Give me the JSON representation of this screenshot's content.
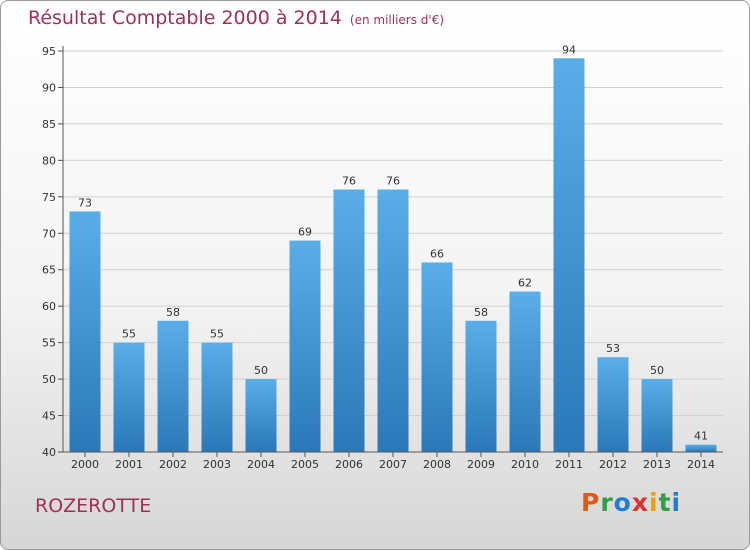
{
  "title": "Résultat Comptable 2000 à 2014",
  "subtitle": "(en milliers d'€)",
  "place": "ROZEROTTE",
  "logo": {
    "letters": [
      "P",
      "r",
      "o",
      "x",
      "i",
      "t",
      "i"
    ],
    "colors": [
      "#e8590c",
      "#2f9e44",
      "#1c7ed6",
      "#e03131",
      "#f59f00",
      "#2f9e44",
      "#1c7ed6"
    ]
  },
  "colors": {
    "bar_top": "#5aaee8",
    "bar_bottom": "#2a78b8",
    "title": "#a0305a",
    "grid": "#d0d0d0"
  },
  "chart_data": {
    "type": "bar",
    "categories": [
      "2000",
      "2001",
      "2002",
      "2003",
      "2004",
      "2005",
      "2006",
      "2007",
      "2008",
      "2009",
      "2010",
      "2011",
      "2012",
      "2013",
      "2014"
    ],
    "values": [
      73,
      55,
      58,
      55,
      50,
      69,
      76,
      76,
      66,
      58,
      62,
      94,
      53,
      50,
      41
    ],
    "ylim": [
      40,
      95
    ],
    "yticks": [
      40,
      45,
      50,
      55,
      60,
      65,
      70,
      75,
      80,
      85,
      90,
      95
    ],
    "grid": true
  }
}
